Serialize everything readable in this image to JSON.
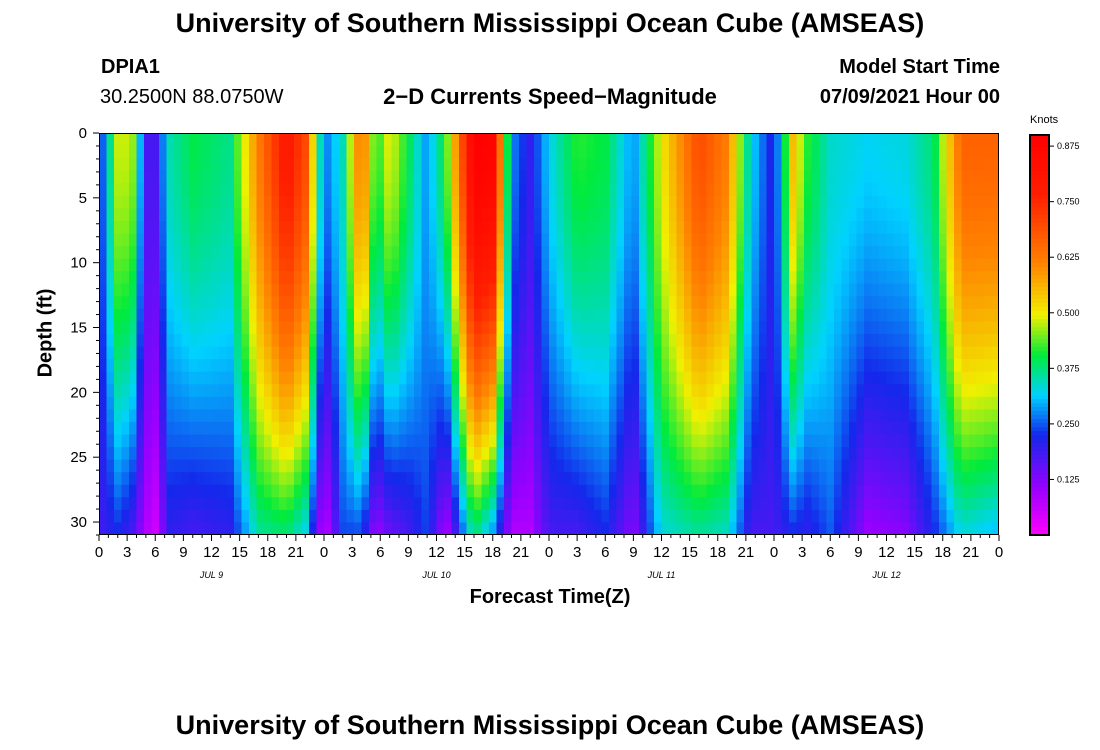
{
  "header": {
    "title_top": "University of Southern Mississippi Ocean Cube (AMSEAS)",
    "title_bottom": "University of Southern Mississippi Ocean Cube (AMSEAS)",
    "station": "DPIA1",
    "coords": "30.2500N  88.0750W",
    "model_label": "Model Start Time",
    "model_time": "07/09/2021 Hour 00"
  },
  "chart_data": {
    "type": "heatmap",
    "title": "2−D Currents Speed−Magnitude",
    "xlabel": "Forecast Time(Z)",
    "ylabel": "Depth (ft)",
    "xlim": [
      0,
      96
    ],
    "ylim": [
      31,
      0
    ],
    "x_ticks": [
      "0",
      "3",
      "6",
      "9",
      "12",
      "15",
      "18",
      "21",
      "0",
      "3",
      "6",
      "9",
      "12",
      "15",
      "18",
      "21",
      "0",
      "3",
      "6",
      "9",
      "12",
      "15",
      "18",
      "21",
      "0",
      "3",
      "6",
      "9",
      "12",
      "15",
      "18",
      "21",
      "0"
    ],
    "y_ticks": [
      "0",
      "5",
      "10",
      "15",
      "20",
      "25",
      "30"
    ],
    "y_tick_values": [
      0,
      5,
      10,
      15,
      20,
      25,
      30
    ],
    "day_labels": [
      {
        "label": "JUL 9",
        "hour": 12
      },
      {
        "label": "JUL 10",
        "hour": 36
      },
      {
        "label": "JUL 11",
        "hour": 60
      },
      {
        "label": "JUL 12",
        "hour": 84
      }
    ],
    "colorbar": {
      "unit": "Knots",
      "min": 0.0,
      "max": 0.9,
      "ticks": [
        "0.875",
        "0.750",
        "0.625",
        "0.500",
        "0.375",
        "0.250",
        "0.125"
      ],
      "tick_values": [
        0.875,
        0.75,
        0.625,
        0.5,
        0.375,
        0.25,
        0.125
      ]
    },
    "speed_profiles": [
      {
        "hour": 0,
        "surface": 0.2,
        "bottom": 0.18
      },
      {
        "hour": 2,
        "surface": 0.48,
        "bottom": 0.22
      },
      {
        "hour": 3.5,
        "surface": 0.48,
        "bottom": 0.18
      },
      {
        "hour": 5,
        "surface": 0.18,
        "bottom": 0.08
      },
      {
        "hour": 6,
        "surface": 0.18,
        "bottom": 0.05
      },
      {
        "hour": 7.5,
        "surface": 0.35,
        "bottom": 0.2
      },
      {
        "hour": 10,
        "surface": 0.4,
        "bottom": 0.18
      },
      {
        "hour": 14,
        "surface": 0.37,
        "bottom": 0.2
      },
      {
        "hour": 17,
        "surface": 0.62,
        "bottom": 0.36
      },
      {
        "hour": 20,
        "surface": 0.8,
        "bottom": 0.38
      },
      {
        "hour": 22,
        "surface": 0.7,
        "bottom": 0.32
      },
      {
        "hour": 24,
        "surface": 0.26,
        "bottom": 0.05
      },
      {
        "hour": 26,
        "surface": 0.35,
        "bottom": 0.24
      },
      {
        "hour": 28,
        "surface": 0.66,
        "bottom": 0.24
      },
      {
        "hour": 29.5,
        "surface": 0.4,
        "bottom": 0.1
      },
      {
        "hour": 31,
        "surface": 0.5,
        "bottom": 0.15
      },
      {
        "hour": 33,
        "surface": 0.4,
        "bottom": 0.18
      },
      {
        "hour": 35,
        "surface": 0.28,
        "bottom": 0.24
      },
      {
        "hour": 37,
        "surface": 0.42,
        "bottom": 0.08
      },
      {
        "hour": 40,
        "surface": 0.9,
        "bottom": 0.38
      },
      {
        "hour": 42,
        "surface": 0.88,
        "bottom": 0.28
      },
      {
        "hour": 44,
        "surface": 0.28,
        "bottom": 0.08
      },
      {
        "hour": 46,
        "surface": 0.2,
        "bottom": 0.08
      },
      {
        "hour": 48,
        "surface": 0.32,
        "bottom": 0.18
      },
      {
        "hour": 51,
        "surface": 0.42,
        "bottom": 0.18
      },
      {
        "hour": 54,
        "surface": 0.4,
        "bottom": 0.22
      },
      {
        "hour": 57,
        "surface": 0.28,
        "bottom": 0.12
      },
      {
        "hour": 60,
        "surface": 0.5,
        "bottom": 0.33
      },
      {
        "hour": 64,
        "surface": 0.7,
        "bottom": 0.36
      },
      {
        "hour": 67,
        "surface": 0.62,
        "bottom": 0.34
      },
      {
        "hour": 69.5,
        "surface": 0.33,
        "bottom": 0.18
      },
      {
        "hour": 72,
        "surface": 0.2,
        "bottom": 0.18
      },
      {
        "hour": 74,
        "surface": 0.55,
        "bottom": 0.22
      },
      {
        "hour": 75.5,
        "surface": 0.42,
        "bottom": 0.2
      },
      {
        "hour": 78,
        "surface": 0.34,
        "bottom": 0.25
      },
      {
        "hour": 82,
        "surface": 0.32,
        "bottom": 0.1
      },
      {
        "hour": 86,
        "surface": 0.33,
        "bottom": 0.12
      },
      {
        "hour": 89,
        "surface": 0.38,
        "bottom": 0.22
      },
      {
        "hour": 92,
        "surface": 0.66,
        "bottom": 0.33
      },
      {
        "hour": 96,
        "surface": 0.66,
        "bottom": 0.3
      }
    ]
  }
}
